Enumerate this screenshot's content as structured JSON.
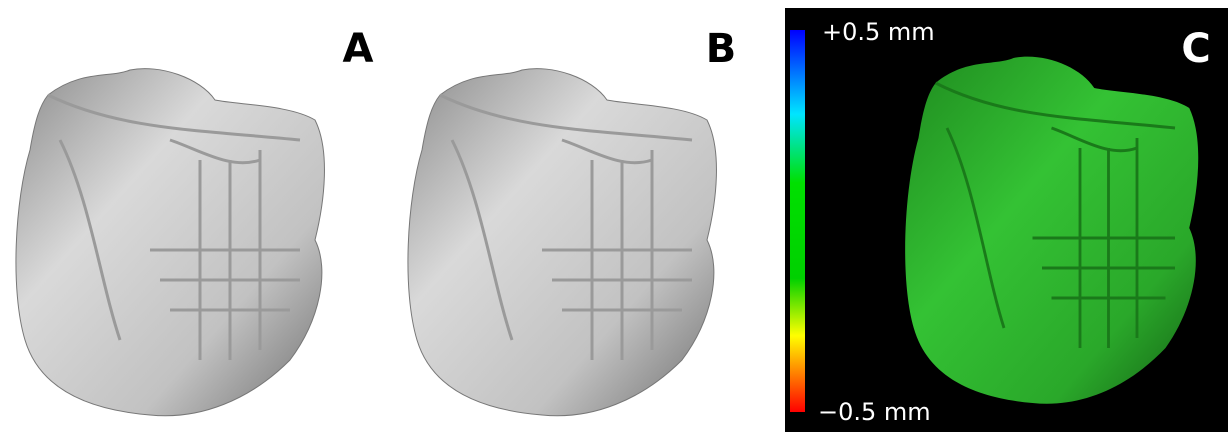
{
  "panels": [
    {
      "label": "A"
    },
    {
      "label": "B"
    },
    {
      "label": "C"
    }
  ],
  "colorbar": {
    "max_label": "+0.5 mm",
    "min_label": "−0.5 mm"
  }
}
